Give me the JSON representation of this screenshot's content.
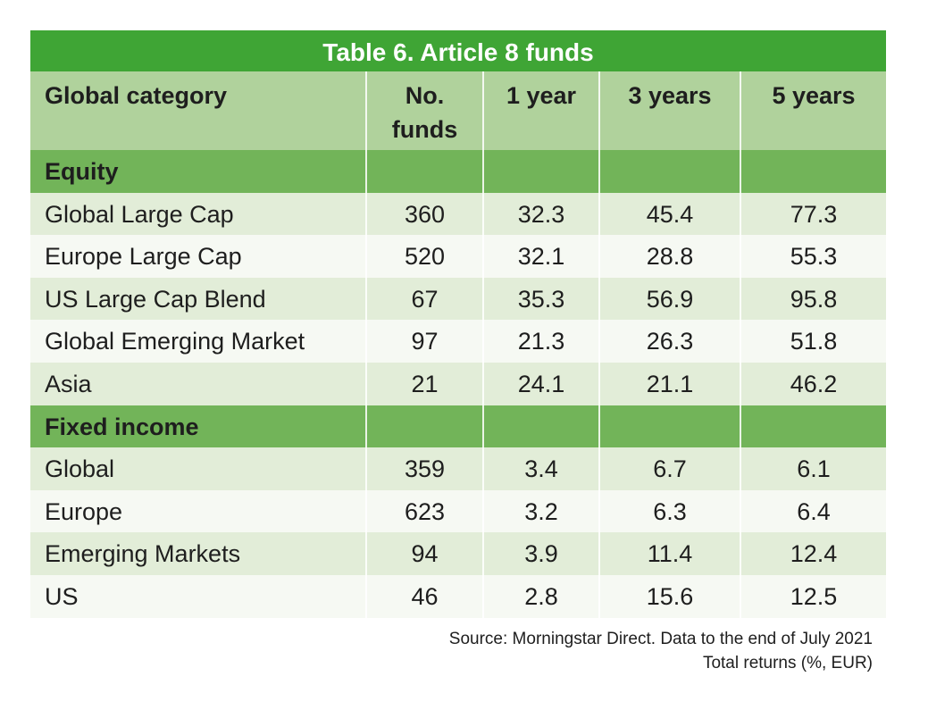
{
  "chart_data": {
    "type": "table",
    "title": "Table 6.  Article 8 funds",
    "columns": [
      "Global category",
      "No. funds",
      "1 year",
      "3 years",
      "5 years"
    ],
    "sections": [
      {
        "name": "Equity",
        "rows": [
          [
            "Global Large Cap",
            "360",
            "32.3",
            "45.4",
            "77.3"
          ],
          [
            "Europe Large Cap",
            "520",
            "32.1",
            "28.8",
            "55.3"
          ],
          [
            "US  Large Cap Blend",
            "67",
            "35.3",
            "56.9",
            "95.8"
          ],
          [
            "Global Emerging Market",
            "97",
            "21.3",
            "26.3",
            "51.8"
          ],
          [
            "Asia",
            "21",
            "24.1",
            "21.1",
            "46.2"
          ]
        ]
      },
      {
        "name": "Fixed income",
        "rows": [
          [
            "Global",
            "359",
            "3.4",
            "6.7",
            "6.1"
          ],
          [
            "Europe",
            "623",
            "3.2",
            "6.3",
            "6.4"
          ],
          [
            "Emerging Markets",
            "94",
            "3.9",
            "11.4",
            "12.4"
          ],
          [
            "US",
            "46",
            "2.8",
            "15.6",
            "12.5"
          ]
        ]
      }
    ],
    "source": "Source: Morningstar Direct. Data to the end of July 2021",
    "note": "Total returns (%, EUR)"
  },
  "colors": {
    "title_bg": "#3fa535",
    "header_bg": "#b0d29c",
    "section_bg": "#72b459",
    "row_odd": "#e2edd8",
    "row_even": "#f6f9f3"
  }
}
